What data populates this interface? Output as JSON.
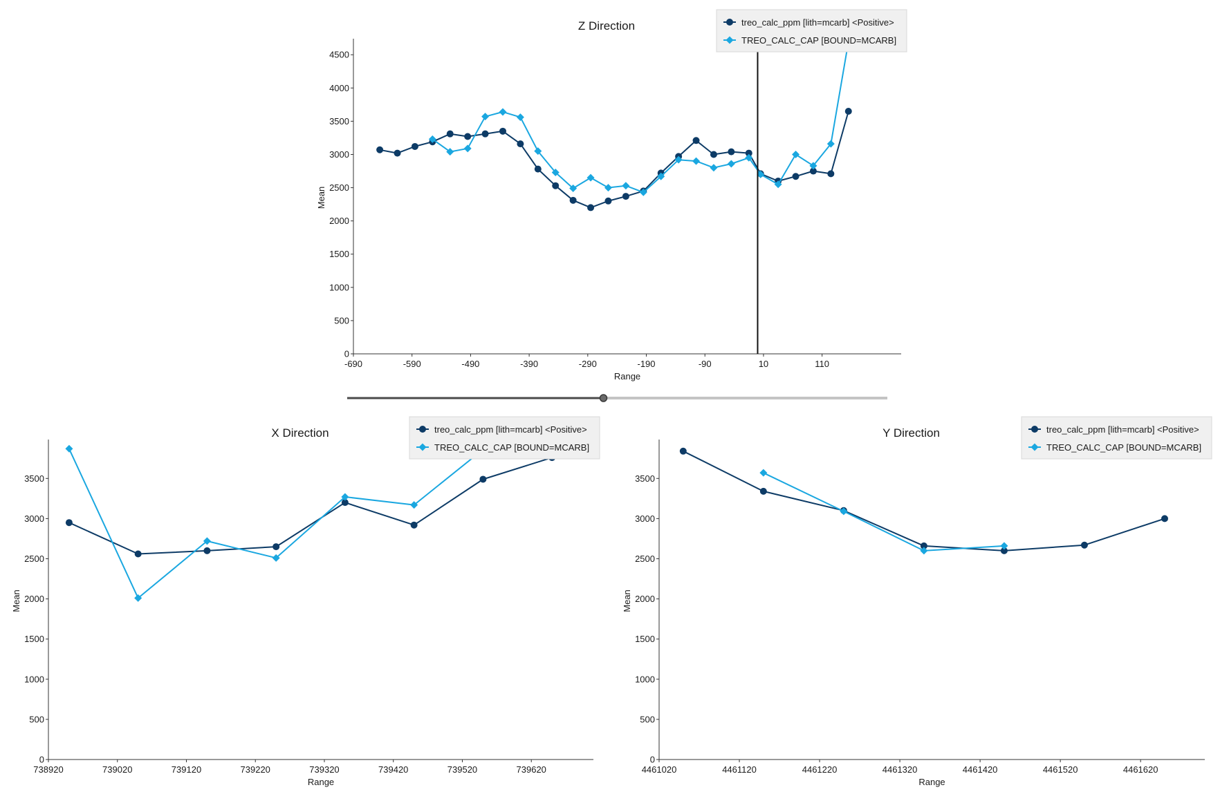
{
  "colors": {
    "series_dark": "#0d3b66",
    "series_light": "#1aa7e0",
    "axis": "#333333",
    "cursor": "#111111"
  },
  "legend": {
    "series_dark_label": "treo_calc_ppm [lith=mcarb] <Positive>",
    "series_light_label": "TREO_CALC_CAP [BOUND=MCARB]",
    "series_dark_marker": "circle",
    "series_light_marker": "diamond"
  },
  "slider": {
    "value_fraction": 0.5
  },
  "chart_data": [
    {
      "id": "z",
      "type": "line",
      "title": "Z Direction",
      "xlabel": "Range",
      "ylabel": "Mean",
      "xlim": [
        -690,
        245
      ],
      "ylim": [
        0,
        4700
      ],
      "xticks": [
        -690,
        -590,
        -490,
        -390,
        -290,
        -190,
        -90,
        10,
        110
      ],
      "yticks": [
        0,
        500,
        1000,
        1500,
        2000,
        2500,
        3000,
        3500,
        4000,
        4500
      ],
      "legend_position": "top-right",
      "cursor_x": 0,
      "series": [
        {
          "name": "treo_calc_ppm [lith=mcarb] <Positive>",
          "marker": "circle",
          "x": [
            -645,
            -615,
            -585,
            -555,
            -525,
            -495,
            -465,
            -435,
            -405,
            -375,
            -345,
            -315,
            -285,
            -255,
            -225,
            -195,
            -165,
            -135,
            -105,
            -75,
            -45,
            -15,
            5,
            35,
            65,
            95,
            125,
            155
          ],
          "y": [
            3070,
            3020,
            3120,
            3190,
            3310,
            3270,
            3310,
            3350,
            3160,
            2780,
            2530,
            2310,
            2200,
            2300,
            2370,
            2450,
            2720,
            2970,
            3210,
            3000,
            3040,
            3020,
            2710,
            2600,
            2670,
            2750,
            2710,
            3650
          ]
        },
        {
          "name": "TREO_CALC_CAP [BOUND=MCARB]",
          "marker": "diamond",
          "x": [
            -555,
            -525,
            -495,
            -465,
            -435,
            -405,
            -375,
            -345,
            -315,
            -285,
            -255,
            -225,
            -195,
            -165,
            -135,
            -105,
            -75,
            -45,
            -15,
            5,
            35,
            65,
            95,
            125,
            155
          ],
          "y": [
            3230,
            3040,
            3090,
            3570,
            3640,
            3560,
            3050,
            2730,
            2490,
            2650,
            2500,
            2530,
            2430,
            2670,
            2920,
            2900,
            2800,
            2860,
            2950,
            2700,
            2550,
            3000,
            2830,
            3160,
            4700
          ]
        }
      ]
    },
    {
      "id": "x",
      "type": "line",
      "title": "X Direction",
      "xlabel": "Range",
      "ylabel": "Mean",
      "xlim": [
        738920,
        739710
      ],
      "ylim": [
        0,
        3950
      ],
      "xticks": [
        738920,
        739020,
        739120,
        739220,
        739320,
        739420,
        739520,
        739620
      ],
      "yticks": [
        0,
        500,
        1000,
        1500,
        2000,
        2500,
        3000,
        3500
      ],
      "legend_position": "top-right",
      "series": [
        {
          "name": "treo_calc_ppm [lith=mcarb] <Positive>",
          "marker": "circle",
          "x": [
            738950,
            739050,
            739150,
            739250,
            739350,
            739450,
            739550,
            739650
          ],
          "y": [
            2950,
            2560,
            2600,
            2650,
            3200,
            2920,
            3490,
            3760
          ]
        },
        {
          "name": "TREO_CALC_CAP [BOUND=MCARB]",
          "marker": "diamond",
          "x": [
            738950,
            739050,
            739150,
            739250,
            739350,
            739450,
            739550
          ],
          "y": [
            3870,
            2010,
            2720,
            2510,
            3270,
            3170,
            3860
          ]
        }
      ]
    },
    {
      "id": "y",
      "type": "line",
      "title": "Y Direction",
      "xlabel": "Range",
      "ylabel": "Mean",
      "xlim": [
        4461020,
        4461700
      ],
      "ylim": [
        0,
        3950
      ],
      "xticks": [
        4461020,
        4461120,
        4461220,
        4461320,
        4461420,
        4461520,
        4461620
      ],
      "yticks": [
        0,
        500,
        1000,
        1500,
        2000,
        2500,
        3000,
        3500
      ],
      "legend_position": "top-right",
      "series": [
        {
          "name": "treo_calc_ppm [lith=mcarb] <Positive>",
          "marker": "circle",
          "x": [
            4461050,
            4461150,
            4461250,
            4461350,
            4461450,
            4461550,
            4461650
          ],
          "y": [
            3840,
            3340,
            3100,
            2660,
            2600,
            2670,
            3000
          ]
        },
        {
          "name": "TREO_CALC_CAP [BOUND=MCARB]",
          "marker": "diamond",
          "x": [
            4461150,
            4461250,
            4461350,
            4461450
          ],
          "y": [
            3570,
            3090,
            2600,
            2660
          ]
        }
      ]
    }
  ]
}
